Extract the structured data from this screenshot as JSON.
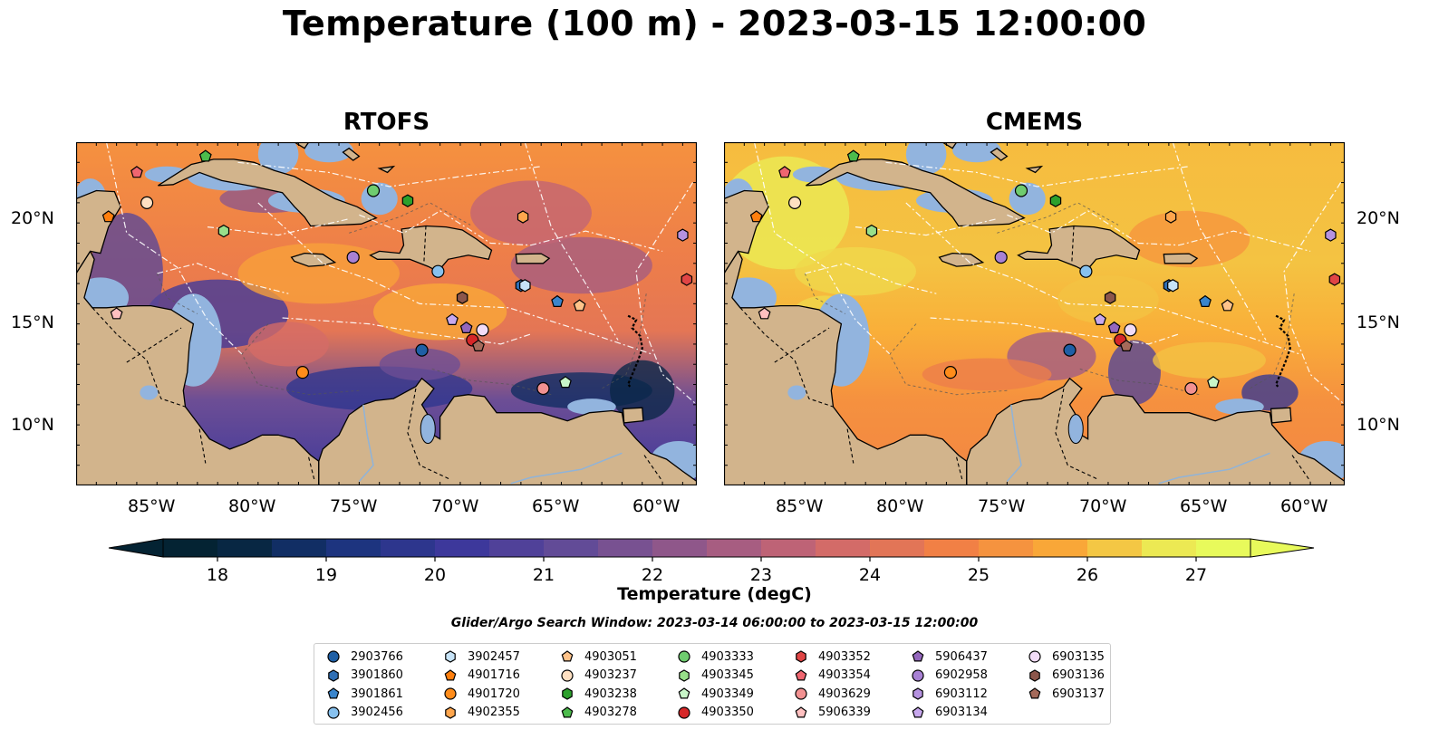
{
  "title": "Temperature (100 m) - 2023-03-15 12:00:00",
  "panels": [
    {
      "name": "RTOFS",
      "model": "rtofs"
    },
    {
      "name": "CMEMS",
      "model": "cmems"
    }
  ],
  "map": {
    "lon_range": [
      -89,
      -58.3
    ],
    "lat_range": [
      7,
      24
    ],
    "lon_ticks": [
      -85,
      -80,
      -75,
      -70,
      -65,
      -60
    ],
    "lon_tick_labels": [
      "85°W",
      "80°W",
      "75°W",
      "70°W",
      "65°W",
      "60°W"
    ],
    "lat_ticks": [
      10,
      15,
      20
    ],
    "lat_tick_labels": [
      "10°N",
      "15°N",
      "20°N"
    ],
    "land_color": "#d2b48c",
    "shallow_water_color": "#92b4de"
  },
  "colorbar": {
    "label": "Temperature (degC)",
    "range": [
      17.5,
      27.5
    ],
    "step": 0.5,
    "tick_values": [
      18,
      19,
      20,
      21,
      22,
      23,
      24,
      25,
      26,
      27
    ],
    "tick_labels": [
      "18",
      "19",
      "20",
      "21",
      "22",
      "23",
      "24",
      "25",
      "26",
      "27"
    ],
    "colormap": "thermal",
    "extend": "both"
  },
  "search_window": "Glider/Argo Search Window: 2023-03-14 06:00:00 to 2023-03-15 12:00:00",
  "floats": [
    {
      "id": "2903766",
      "marker": "circle",
      "color": "#1f5fa5",
      "lon": -71.9,
      "lat": 13.7
    },
    {
      "id": "3901860",
      "marker": "hexagon",
      "color": "#2f6fb5",
      "lon": -67.0,
      "lat": 16.9
    },
    {
      "id": "3901861",
      "marker": "pentagon",
      "color": "#3a85cc",
      "lon": -65.2,
      "lat": 16.1
    },
    {
      "id": "3902456",
      "marker": "circle",
      "color": "#87c1ee",
      "lon": -71.1,
      "lat": 17.6
    },
    {
      "id": "3902457",
      "marker": "hexagon",
      "color": "#c6e3f7",
      "lon": -66.8,
      "lat": 16.9
    },
    {
      "id": "4901716",
      "marker": "pentagon",
      "color": "#ff7f0e",
      "lon": -87.4,
      "lat": 20.3
    },
    {
      "id": "4901720",
      "marker": "circle",
      "color": "#ff8c1a",
      "lon": -77.8,
      "lat": 12.6
    },
    {
      "id": "4902355",
      "marker": "hexagon",
      "color": "#ffa64d",
      "lon": -66.9,
      "lat": 20.3
    },
    {
      "id": "4903051",
      "marker": "pentagon",
      "color": "#ffc38a",
      "lon": -64.1,
      "lat": 15.9
    },
    {
      "id": "4903237",
      "marker": "circle",
      "color": "#ffe0c2",
      "lon": -85.5,
      "lat": 21.0
    },
    {
      "id": "4903238",
      "marker": "hexagon",
      "color": "#2ca02c",
      "lon": -72.6,
      "lat": 21.1
    },
    {
      "id": "4903278",
      "marker": "pentagon",
      "color": "#4cbb4c",
      "lon": -82.6,
      "lat": 23.3
    },
    {
      "id": "4903333",
      "marker": "circle",
      "color": "#6fcc6f",
      "lon": -74.3,
      "lat": 21.6
    },
    {
      "id": "4903345",
      "marker": "hexagon",
      "color": "#98df8a",
      "lon": -81.7,
      "lat": 19.6
    },
    {
      "id": "4903349",
      "marker": "pentagon",
      "color": "#c7f5c7",
      "lon": -64.8,
      "lat": 12.1
    },
    {
      "id": "4903350",
      "marker": "circle",
      "color": "#d62728",
      "lon": -69.4,
      "lat": 14.2
    },
    {
      "id": "4903352",
      "marker": "hexagon",
      "color": "#e04545",
      "lon": -58.8,
      "lat": 17.2
    },
    {
      "id": "4903354",
      "marker": "pentagon",
      "color": "#ef6670",
      "lon": -86.0,
      "lat": 22.5
    },
    {
      "id": "4903629",
      "marker": "circle",
      "color": "#f29191",
      "lon": -65.9,
      "lat": 11.8
    },
    {
      "id": "5906339",
      "marker": "pentagon",
      "color": "#ffc0c0",
      "lon": -87.0,
      "lat": 15.5
    },
    {
      "id": "5906437",
      "marker": "pentagon",
      "color": "#9467bd",
      "lon": -69.7,
      "lat": 14.8
    },
    {
      "id": "6902958",
      "marker": "circle",
      "color": "#a881d4",
      "lon": -75.3,
      "lat": 18.3
    },
    {
      "id": "6903112",
      "marker": "hexagon",
      "color": "#b592e0",
      "lon": -59.0,
      "lat": 19.4
    },
    {
      "id": "6903134",
      "marker": "pentagon",
      "color": "#c8a8ee",
      "lon": -70.4,
      "lat": 15.2
    },
    {
      "id": "6903135",
      "marker": "circle",
      "color": "#f2dcf7",
      "lon": -68.9,
      "lat": 14.7
    },
    {
      "id": "6903136",
      "marker": "hexagon",
      "color": "#8c564b",
      "lon": -69.9,
      "lat": 16.3
    },
    {
      "id": "6903137",
      "marker": "pentagon",
      "color": "#a56a5a",
      "lon": -69.1,
      "lat": 13.9
    }
  ]
}
